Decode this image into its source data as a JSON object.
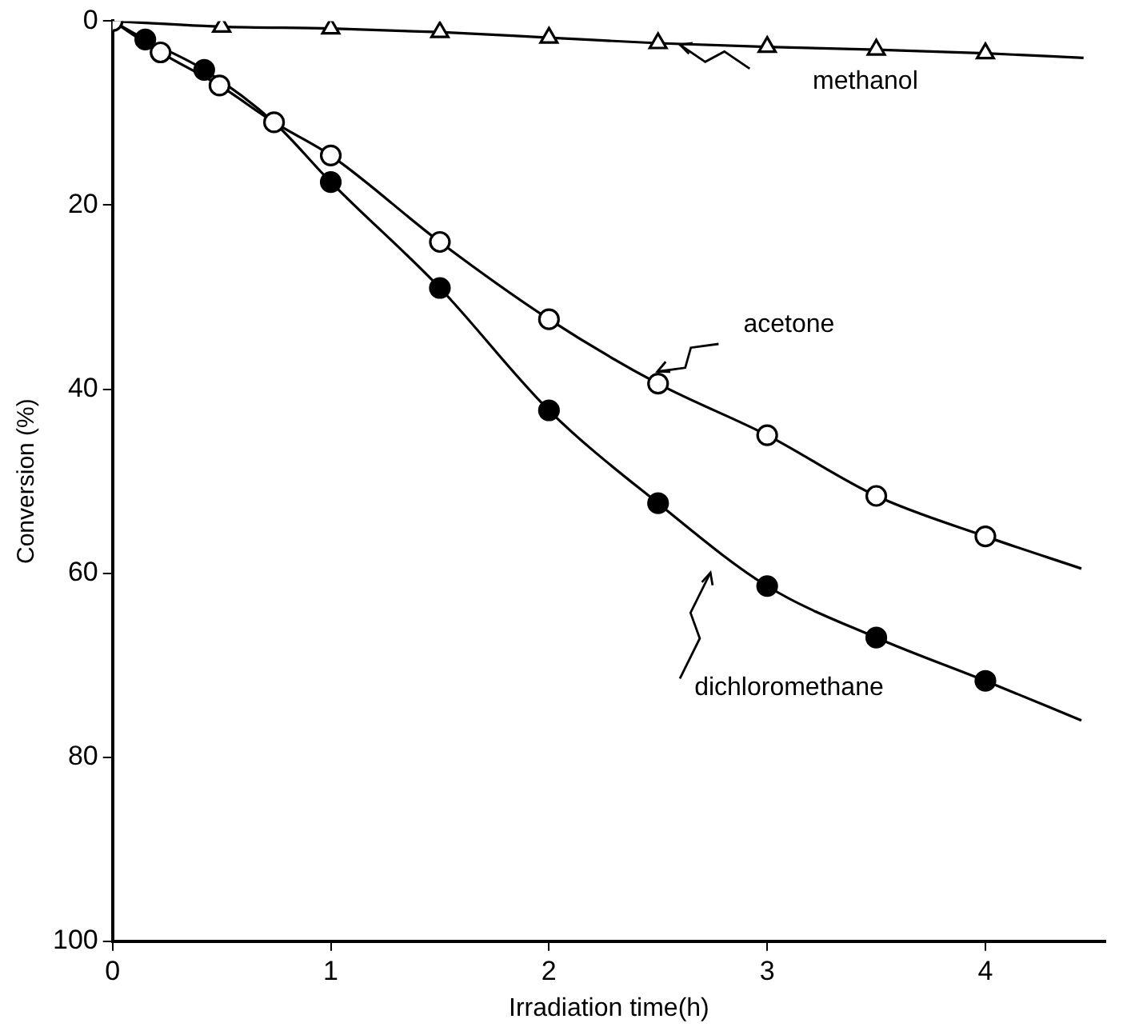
{
  "chart_data": {
    "type": "scatter",
    "xlabel": "Irradiation time(h)",
    "ylabel": "Conversion (%)",
    "xlim": [
      0,
      4.55
    ],
    "xticks": [
      0,
      1,
      2,
      3,
      4
    ],
    "ylim": [
      100,
      0
    ],
    "yticks": [
      0,
      20,
      40,
      60,
      80,
      100
    ],
    "grid": false,
    "legend": false,
    "series": [
      {
        "name": "methanol",
        "type": "scatter",
        "marker": "triangle",
        "color": "#000000",
        "x": [
          0.5,
          1,
          1.5,
          2,
          2.5,
          3,
          3.5,
          4
        ],
        "values": [
          0.6,
          0.8,
          1.2,
          1.8,
          2.4,
          2.8,
          3.1,
          3.5
        ]
      },
      {
        "name": "acetone",
        "type": "scatter",
        "marker": "circle",
        "color": "#000000",
        "x": [
          0,
          0.22,
          0.49,
          0.74,
          1,
          1.5,
          2,
          2.5,
          3,
          3.5,
          4
        ],
        "values": [
          0,
          3.4,
          7,
          11,
          14.6,
          24,
          32.4,
          39.4,
          45,
          51.6,
          56
        ]
      },
      {
        "name": "dichloromethane",
        "type": "scatter",
        "marker": "circle",
        "color": "#000000",
        "x": [
          0.15,
          0.42,
          1,
          1.5,
          2,
          2.5,
          3,
          3.5,
          4
        ],
        "values": [
          2,
          5.3,
          17.5,
          29,
          42.3,
          52.4,
          61.4,
          67,
          71.7
        ]
      },
      {
        "type": "line",
        "color": "#000000",
        "x": [
          0,
          0.5,
          1,
          1.5,
          2,
          2.5,
          3,
          3.5,
          4,
          4.45
        ],
        "values": [
          0,
          0.6,
          0.8,
          1.2,
          1.8,
          2.4,
          2.8,
          3.1,
          3.5,
          4
        ]
      },
      {
        "type": "line",
        "color": "#000000",
        "x": [
          0,
          0.22,
          0.49,
          0.74,
          1,
          1.5,
          2,
          2.5,
          3,
          3.5,
          4,
          4.44
        ],
        "values": [
          0,
          3.4,
          7,
          11,
          14.6,
          24,
          32.4,
          39.4,
          45,
          51.6,
          56,
          59.5
        ]
      },
      {
        "type": "line",
        "color": "#000000",
        "x": [
          0,
          0.15,
          0.42,
          0.74,
          1,
          1.5,
          2,
          2.5,
          3,
          3.5,
          4,
          4.44
        ],
        "values": [
          0,
          2,
          5.3,
          11,
          17.5,
          29,
          42.3,
          52.4,
          61.4,
          67,
          71.7,
          76
        ]
      }
    ]
  }
}
